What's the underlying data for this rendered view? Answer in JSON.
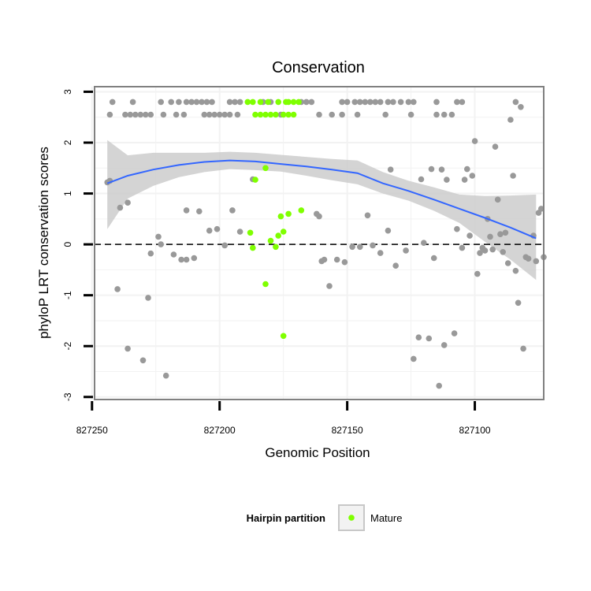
{
  "chart_data": {
    "type": "scatter",
    "title": "Conservation",
    "xlabel": "Genomic Position",
    "ylabel": "phyloP LRT conservation scores",
    "x_reversed": true,
    "xlim": [
      827249,
      827073
    ],
    "ylim": [
      -3.05,
      3.1
    ],
    "x_ticks": [
      827250,
      827200,
      827150,
      827100
    ],
    "x_tick_labels": [
      "827250",
      "827200",
      "827150",
      "827100"
    ],
    "y_ticks": [
      3,
      2,
      1,
      0,
      -1,
      -2,
      -3
    ],
    "y_tick_labels": [
      "3",
      "2",
      "1",
      "0",
      "-1",
      "-2",
      "-3"
    ],
    "grid": true,
    "reference_line": {
      "y": 0,
      "style": "dashed"
    },
    "colors": {
      "other": "#999999",
      "mature": "#7fff00",
      "smooth": "#3366ff",
      "ribbon": "#cccccc",
      "grid": "#f2f2f2",
      "border": "#808080"
    },
    "legend": {
      "title": "Hairpin partition",
      "entries": [
        "Mature"
      ],
      "placement": "bottom"
    },
    "series": [
      {
        "group": "other",
        "points": [
          [
            827242,
            2.8
          ],
          [
            827234,
            2.8
          ],
          [
            827223,
            2.8
          ],
          [
            827219,
            2.8
          ],
          [
            827216,
            2.8
          ],
          [
            827213,
            2.8
          ],
          [
            827211,
            2.8
          ],
          [
            827209,
            2.8
          ],
          [
            827207,
            2.8
          ],
          [
            827205,
            2.8
          ],
          [
            827203,
            2.8
          ],
          [
            827196,
            2.8
          ],
          [
            827194,
            2.8
          ],
          [
            827192,
            2.8
          ],
          [
            827183,
            2.8
          ],
          [
            827180,
            2.8
          ],
          [
            827168,
            2.8
          ],
          [
            827166,
            2.8
          ],
          [
            827164,
            2.8
          ],
          [
            827152,
            2.8
          ],
          [
            827150,
            2.8
          ],
          [
            827147,
            2.8
          ],
          [
            827145,
            2.8
          ],
          [
            827143,
            2.8
          ],
          [
            827141,
            2.8
          ],
          [
            827139,
            2.8
          ],
          [
            827137,
            2.8
          ],
          [
            827134,
            2.8
          ],
          [
            827132,
            2.8
          ],
          [
            827129,
            2.8
          ],
          [
            827126,
            2.8
          ],
          [
            827124,
            2.8
          ],
          [
            827115,
            2.8
          ],
          [
            827107,
            2.8
          ],
          [
            827105,
            2.8
          ],
          [
            827084,
            2.8
          ],
          [
            827243,
            2.55
          ],
          [
            827237,
            2.55
          ],
          [
            827235,
            2.55
          ],
          [
            827233,
            2.55
          ],
          [
            827231,
            2.55
          ],
          [
            827229,
            2.55
          ],
          [
            827227,
            2.55
          ],
          [
            827222,
            2.55
          ],
          [
            827217,
            2.55
          ],
          [
            827214,
            2.55
          ],
          [
            827206,
            2.55
          ],
          [
            827204,
            2.55
          ],
          [
            827202,
            2.55
          ],
          [
            827200,
            2.55
          ],
          [
            827198,
            2.55
          ],
          [
            827196,
            2.55
          ],
          [
            827193,
            2.55
          ],
          [
            827176,
            2.55
          ],
          [
            827161,
            2.55
          ],
          [
            827156,
            2.55
          ],
          [
            827152,
            2.55
          ],
          [
            827146,
            2.55
          ],
          [
            827135,
            2.55
          ],
          [
            827125,
            2.55
          ],
          [
            827115,
            2.55
          ],
          [
            827112,
            2.55
          ],
          [
            827109,
            2.55
          ],
          [
            827244,
            1.22
          ],
          [
            827243,
            1.25
          ],
          [
            827239,
            0.72
          ],
          [
            827236,
            0.82
          ],
          [
            827240,
            -0.88
          ],
          [
            827236,
            -2.05
          ],
          [
            827230,
            -2.28
          ],
          [
            827228,
            -1.05
          ],
          [
            827227,
            -0.18
          ],
          [
            827224,
            0.15
          ],
          [
            827223,
            0.0
          ],
          [
            827221,
            -2.58
          ],
          [
            827218,
            -0.2
          ],
          [
            827215,
            -0.3
          ],
          [
            827213,
            0.67
          ],
          [
            827213,
            -0.3
          ],
          [
            827210,
            -0.27
          ],
          [
            827208,
            0.65
          ],
          [
            827204,
            0.27
          ],
          [
            827201,
            0.3
          ],
          [
            827198,
            -0.02
          ],
          [
            827195,
            0.67
          ],
          [
            827192,
            0.25
          ],
          [
            827187,
            1.28
          ],
          [
            827162,
            0.6
          ],
          [
            827161,
            0.55
          ],
          [
            827160,
            -0.33
          ],
          [
            827159,
            -0.3
          ],
          [
            827157,
            -0.82
          ],
          [
            827154,
            -0.3
          ],
          [
            827151,
            -0.35
          ],
          [
            827148,
            -0.05
          ],
          [
            827145,
            -0.05
          ],
          [
            827142,
            0.57
          ],
          [
            827140,
            -0.02
          ],
          [
            827137,
            -0.17
          ],
          [
            827134,
            0.27
          ],
          [
            827133,
            1.47
          ],
          [
            827131,
            -0.42
          ],
          [
            827127,
            -0.12
          ],
          [
            827122,
            -1.83
          ],
          [
            827121,
            1.28
          ],
          [
            827120,
            0.03
          ],
          [
            827118,
            -1.85
          ],
          [
            827117,
            1.48
          ],
          [
            827116,
            -0.27
          ],
          [
            827124,
            -2.25
          ],
          [
            827114,
            -2.78
          ],
          [
            827113,
            1.47
          ],
          [
            827112,
            -1.98
          ],
          [
            827111,
            1.27
          ],
          [
            827108,
            -1.75
          ],
          [
            827107,
            0.3
          ],
          [
            827105,
            -0.07
          ],
          [
            827104,
            1.27
          ],
          [
            827103,
            1.48
          ],
          [
            827102,
            0.17
          ],
          [
            827101,
            1.35
          ],
          [
            827100,
            2.03
          ],
          [
            827099,
            -0.58
          ],
          [
            827098,
            -0.17
          ],
          [
            827097,
            -0.07
          ],
          [
            827096,
            -0.12
          ],
          [
            827095,
            0.5
          ],
          [
            827094,
            0.15
          ],
          [
            827093,
            -0.1
          ],
          [
            827092,
            1.92
          ],
          [
            827091,
            0.88
          ],
          [
            827090,
            0.2
          ],
          [
            827089,
            -0.15
          ],
          [
            827088,
            0.23
          ],
          [
            827087,
            -0.37
          ],
          [
            827086,
            2.45
          ],
          [
            827085,
            1.35
          ],
          [
            827084,
            -0.52
          ],
          [
            827083,
            -1.15
          ],
          [
            827082,
            2.7
          ],
          [
            827081,
            -2.05
          ],
          [
            827080,
            -0.25
          ],
          [
            827079,
            -0.28
          ],
          [
            827077,
            0.17
          ],
          [
            827076,
            -0.33
          ],
          [
            827075,
            0.62
          ],
          [
            827074,
            0.7
          ],
          [
            827073,
            -0.25
          ]
        ]
      },
      {
        "group": "Mature",
        "points": [
          [
            827189,
            2.8
          ],
          [
            827187,
            2.8
          ],
          [
            827184,
            2.8
          ],
          [
            827186,
            2.55
          ],
          [
            827184,
            2.55
          ],
          [
            827182,
            2.55
          ],
          [
            827180,
            2.55
          ],
          [
            827181,
            2.8
          ],
          [
            827178,
            2.55
          ],
          [
            827177,
            2.8
          ],
          [
            827174,
            2.8
          ],
          [
            827173,
            2.8
          ],
          [
            827171,
            2.8
          ],
          [
            827169,
            2.8
          ],
          [
            827175,
            2.55
          ],
          [
            827173,
            2.55
          ],
          [
            827171,
            2.55
          ],
          [
            827182,
            1.5
          ],
          [
            827186,
            1.27
          ],
          [
            827180,
            0.07
          ],
          [
            827177,
            0.17
          ],
          [
            827176,
            0.55
          ],
          [
            827173,
            0.6
          ],
          [
            827168,
            0.67
          ],
          [
            827175,
            0.25
          ],
          [
            827178,
            -0.05
          ],
          [
            827188,
            0.23
          ],
          [
            827187,
            -0.07
          ],
          [
            827182,
            -0.78
          ],
          [
            827175,
            -1.8
          ]
        ]
      }
    ],
    "smooth": {
      "x": [
        827244,
        827236,
        827226,
        827216,
        827206,
        827196,
        827186,
        827176,
        827166,
        827156,
        827146,
        827136,
        827126,
        827116,
        827106,
        827096,
        827086,
        827076
      ],
      "y": [
        1.2,
        1.35,
        1.47,
        1.56,
        1.62,
        1.65,
        1.63,
        1.58,
        1.53,
        1.47,
        1.4,
        1.2,
        1.05,
        0.88,
        0.7,
        0.52,
        0.33,
        0.12
      ],
      "lower": [
        0.3,
        0.9,
        1.15,
        1.32,
        1.42,
        1.48,
        1.46,
        1.43,
        1.35,
        1.26,
        1.18,
        1.0,
        0.86,
        0.66,
        0.42,
        0.05,
        -0.3,
        -0.7
      ],
      "upper": [
        2.05,
        1.75,
        1.8,
        1.8,
        1.8,
        1.82,
        1.8,
        1.76,
        1.72,
        1.68,
        1.65,
        1.42,
        1.25,
        1.12,
        0.98,
        0.95,
        0.96,
        0.98
      ]
    }
  }
}
